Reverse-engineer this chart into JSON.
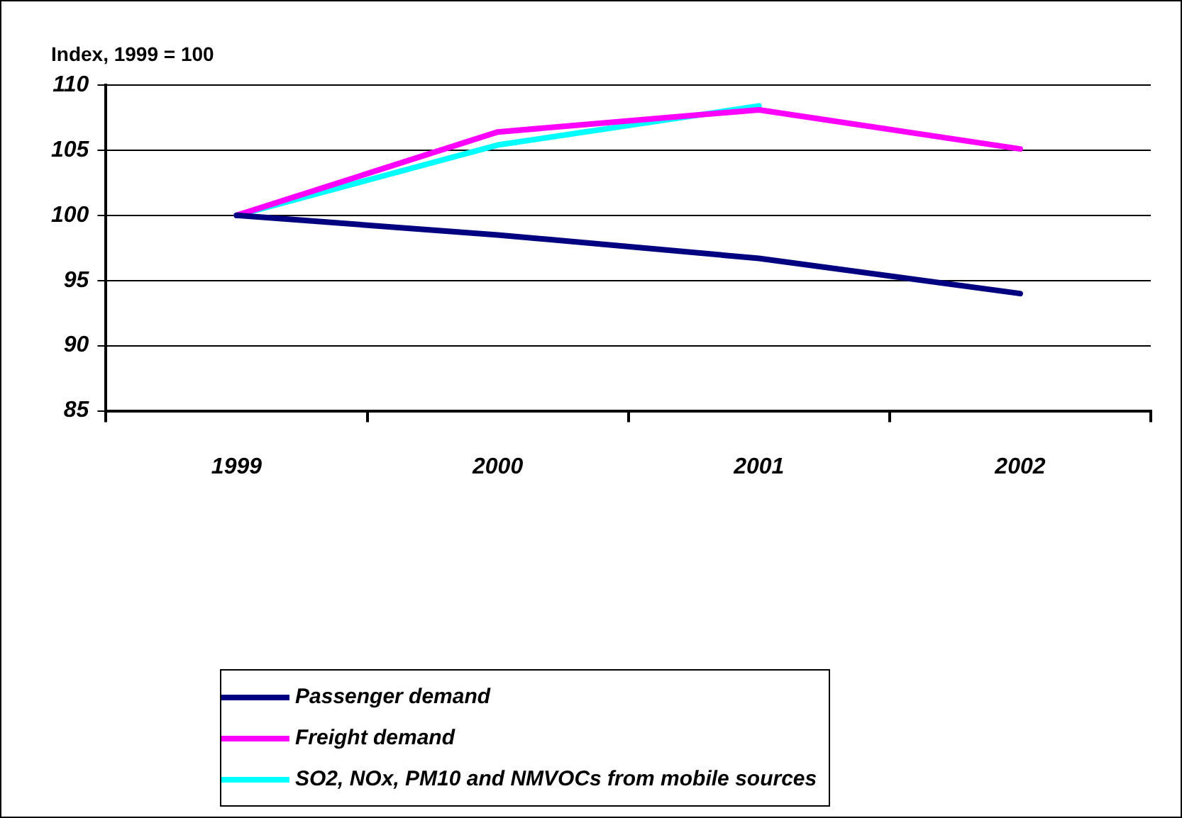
{
  "chart_data": {
    "type": "line",
    "ylabel": "Index, 1999 = 100",
    "categories": [
      "1999",
      "2000",
      "2001",
      "2002"
    ],
    "series": [
      {
        "name": "Passenger demand",
        "color": "#000080",
        "values": [
          100,
          98.5,
          96.7,
          94.0
        ]
      },
      {
        "name": "Freight demand",
        "color": "#ff00ff",
        "values": [
          100,
          106.4,
          108.1,
          105.1
        ]
      },
      {
        "name": "SO2, NOx, PM10 and NMVOCs from mobile sources",
        "color": "#00ffff",
        "values": [
          100,
          105.4,
          108.4,
          null
        ]
      }
    ],
    "ylim": [
      85,
      110
    ],
    "yticks": [
      85,
      90,
      95,
      100,
      105,
      110
    ],
    "grid": "y",
    "legend": "bottom",
    "marker": "none",
    "line_style": "solid"
  }
}
